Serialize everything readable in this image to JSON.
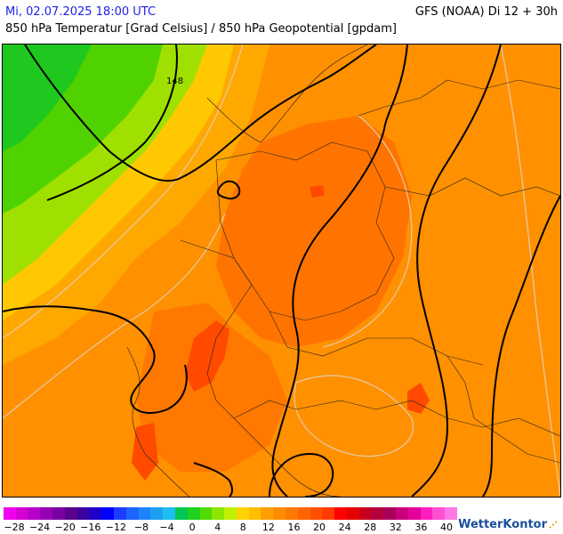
{
  "header": {
    "datetime": "Mi, 02.07.2025 18:00 UTC",
    "model": "GFS (NOAA) Di 12 + 30h",
    "subtitle": "850 hPa Temperatur [Grad Celsius] / 850 hPa Geopotential [gpdam]"
  },
  "map": {
    "contour_label": "148"
  },
  "legend": {
    "colors": [
      "#f000f0",
      "#d200d2",
      "#b400c8",
      "#9600b4",
      "#7800a0",
      "#5a008c",
      "#3c00a0",
      "#1e00c8",
      "#0000ff",
      "#1e3cff",
      "#1e64ff",
      "#1e82ff",
      "#1ea0f0",
      "#1ebef0",
      "#00c850",
      "#1ed21e",
      "#50dc00",
      "#8ce600",
      "#bef000",
      "#ffd200",
      "#ffbe00",
      "#ffa000",
      "#ff8c00",
      "#ff7800",
      "#ff6400",
      "#ff5000",
      "#ff3c00",
      "#ff0000",
      "#e60000",
      "#c8001e",
      "#b4003c",
      "#aa005a",
      "#c8007d",
      "#e6009b",
      "#ff1ebe",
      "#ff50d2",
      "#ff78e6"
    ],
    "labels": [
      "−28",
      "−24",
      "−20",
      "−16",
      "−12",
      "−8",
      "−4",
      "0",
      "4",
      "8",
      "12",
      "16",
      "20",
      "24",
      "28",
      "32",
      "36",
      "40"
    ]
  },
  "branding": {
    "name": "WetterKontor",
    "dots": "⋰"
  }
}
